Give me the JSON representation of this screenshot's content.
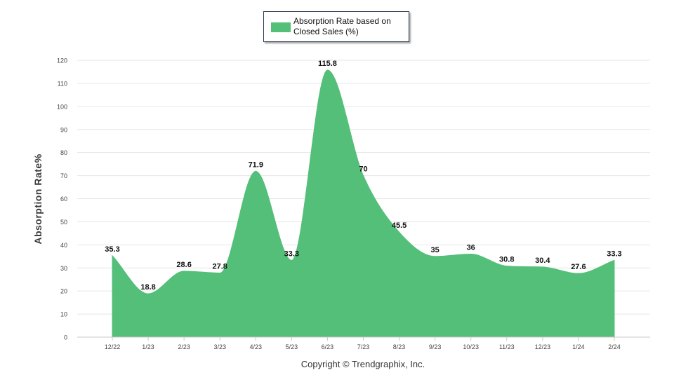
{
  "chart_data": {
    "type": "area",
    "categories": [
      "12/22",
      "1/23",
      "2/23",
      "3/23",
      "4/23",
      "5/23",
      "6/23",
      "7/23",
      "8/23",
      "9/23",
      "10/23",
      "11/23",
      "12/23",
      "1/24",
      "2/24"
    ],
    "series": [
      {
        "name": "Absorption Rate based on Closed Sales (%)",
        "values": [
          35.3,
          18.8,
          28.6,
          27.8,
          71.9,
          33.3,
          115.8,
          70,
          45.5,
          35,
          36,
          30.8,
          30.4,
          27.6,
          33.3
        ],
        "color": "#54bf79"
      }
    ],
    "value_labels": [
      "35.3",
      "18.8",
      "28.6",
      "27.8",
      "71.9",
      "33.3",
      "115.8",
      "70",
      "45.5",
      "35",
      "36",
      "30.8",
      "30.4",
      "27.6",
      "33.3"
    ],
    "xlabel": "",
    "ylabel": "Absorption Rate%",
    "ylim": [
      0,
      120
    ],
    "yticks": [
      0,
      10,
      20,
      30,
      40,
      50,
      60,
      70,
      80,
      90,
      100,
      110,
      120
    ],
    "grid": true,
    "legend_position": "top-center"
  },
  "legend": {
    "label_line1": "Absorption Rate based on",
    "label_line2": "Closed Sales (%)"
  },
  "footer": {
    "copyright": "Copyright © Trendgraphix, Inc."
  },
  "colors": {
    "area": "#54bf79",
    "grid": "#e6e6e6",
    "axis": "#c8c8c8",
    "tick_text": "#444444"
  }
}
